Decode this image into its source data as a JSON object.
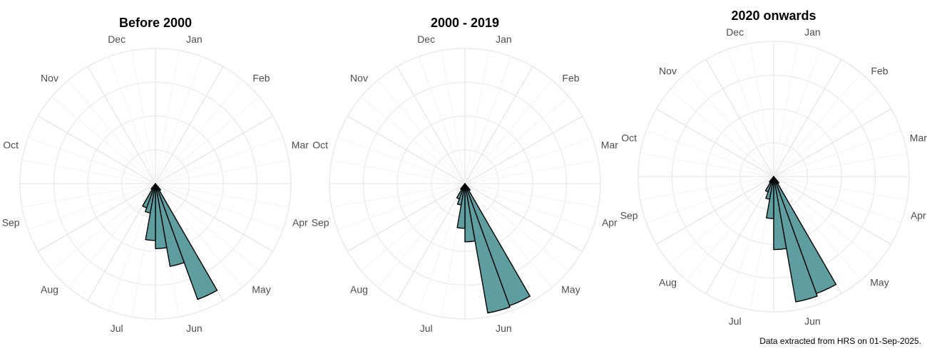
{
  "caption": "Data extracted from HRS on 01-Sep-2025.",
  "chart_data": [
    {
      "type": "rose",
      "title": "Before 2000",
      "months": [
        "Jan",
        "Feb",
        "Mar",
        "Apr",
        "May",
        "Jun",
        "Jul",
        "Aug",
        "Sep",
        "Oct",
        "Nov",
        "Dec"
      ],
      "sectors_per_month": 3,
      "radial_grid_levels": 4,
      "bars": [
        {
          "month": "Jun",
          "sector": 0,
          "value": 0.91
        },
        {
          "month": "Jun",
          "sector": 1,
          "value": 0.62
        },
        {
          "month": "Jun",
          "sector": 2,
          "value": 0.48
        },
        {
          "month": "Jul",
          "sector": 0,
          "value": 0.42
        },
        {
          "month": "Jul",
          "sector": 1,
          "value": 0.22
        },
        {
          "month": "Jul",
          "sector": 2,
          "value": 0.19
        },
        {
          "month": "May",
          "sector": 2,
          "value": 0.06
        },
        {
          "month": "Aug",
          "sector": 0,
          "value": 0.05
        }
      ],
      "fill": "#5f9ea0",
      "stroke": "#000000"
    },
    {
      "type": "rose",
      "title": "2000 - 2019",
      "months": [
        "Jan",
        "Feb",
        "Mar",
        "Apr",
        "May",
        "Jun",
        "Jul",
        "Aug",
        "Sep",
        "Oct",
        "Nov",
        "Dec"
      ],
      "sectors_per_month": 3,
      "radial_grid_levels": 4,
      "bars": [
        {
          "month": "Jun",
          "sector": 0,
          "value": 0.96
        },
        {
          "month": "Jun",
          "sector": 1,
          "value": 0.97
        },
        {
          "month": "Jun",
          "sector": 2,
          "value": 0.43
        },
        {
          "month": "Jul",
          "sector": 0,
          "value": 0.33
        },
        {
          "month": "Jul",
          "sector": 1,
          "value": 0.16
        },
        {
          "month": "Jul",
          "sector": 2,
          "value": 0.12
        },
        {
          "month": "May",
          "sector": 2,
          "value": 0.06
        },
        {
          "month": "Aug",
          "sector": 0,
          "value": 0.05
        }
      ],
      "fill": "#5f9ea0",
      "stroke": "#000000"
    },
    {
      "type": "rose",
      "title": "2020 onwards",
      "months": [
        "Jan",
        "Feb",
        "Mar",
        "Apr",
        "May",
        "Jun",
        "Jul",
        "Aug",
        "Sep",
        "Oct",
        "Nov",
        "Dec"
      ],
      "sectors_per_month": 3,
      "radial_grid_levels": 4,
      "bars": [
        {
          "month": "Jun",
          "sector": 0,
          "value": 0.92
        },
        {
          "month": "Jun",
          "sector": 1,
          "value": 0.94
        },
        {
          "month": "Jun",
          "sector": 2,
          "value": 0.54
        },
        {
          "month": "Jul",
          "sector": 0,
          "value": 0.31
        },
        {
          "month": "Jul",
          "sector": 1,
          "value": 0.17
        },
        {
          "month": "Jul",
          "sector": 2,
          "value": 0.12
        },
        {
          "month": "May",
          "sector": 2,
          "value": 0.06
        },
        {
          "month": "Aug",
          "sector": 0,
          "value": 0.05
        }
      ],
      "fill": "#5f9ea0",
      "stroke": "#000000"
    }
  ]
}
